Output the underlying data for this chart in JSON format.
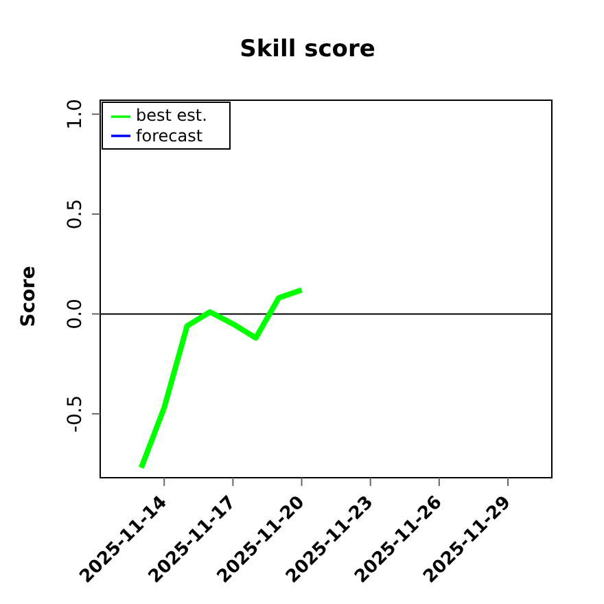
{
  "chart_data": {
    "type": "line",
    "title": "Skill score",
    "ylabel": "Score",
    "x": [
      "2025-11-13",
      "2025-11-14",
      "2025-11-15",
      "2025-11-16",
      "2025-11-17",
      "2025-11-18",
      "2025-11-19",
      "2025-11-20"
    ],
    "series": [
      {
        "name": "best est.",
        "color": "#00ff00",
        "values": [
          -0.77,
          -0.47,
          -0.06,
          0.01,
          -0.05,
          -0.12,
          0.08,
          0.12
        ]
      },
      {
        "name": "forecast",
        "color": "#0000ff",
        "values": [
          null,
          null,
          null,
          null,
          null,
          null,
          null,
          null
        ]
      }
    ],
    "xlim": [
      "2025-11-11T05:00",
      "2025-11-30T22:00"
    ],
    "xticks": [
      "2025-11-14",
      "2025-11-17",
      "2025-11-20",
      "2025-11-23",
      "2025-11-26",
      "2025-11-29"
    ],
    "ylim": [
      -0.82,
      1.07
    ],
    "yticks": [
      -0.5,
      {
        "value": 0,
        "label": "0.0"
      },
      0.5,
      {
        "value": 1,
        "label": "1.0"
      }
    ],
    "ref_lines": [
      {
        "axis": "y",
        "value": 0,
        "color": "#000000"
      }
    ],
    "legend": "top left",
    "marker": "none",
    "line_style": "solid"
  }
}
